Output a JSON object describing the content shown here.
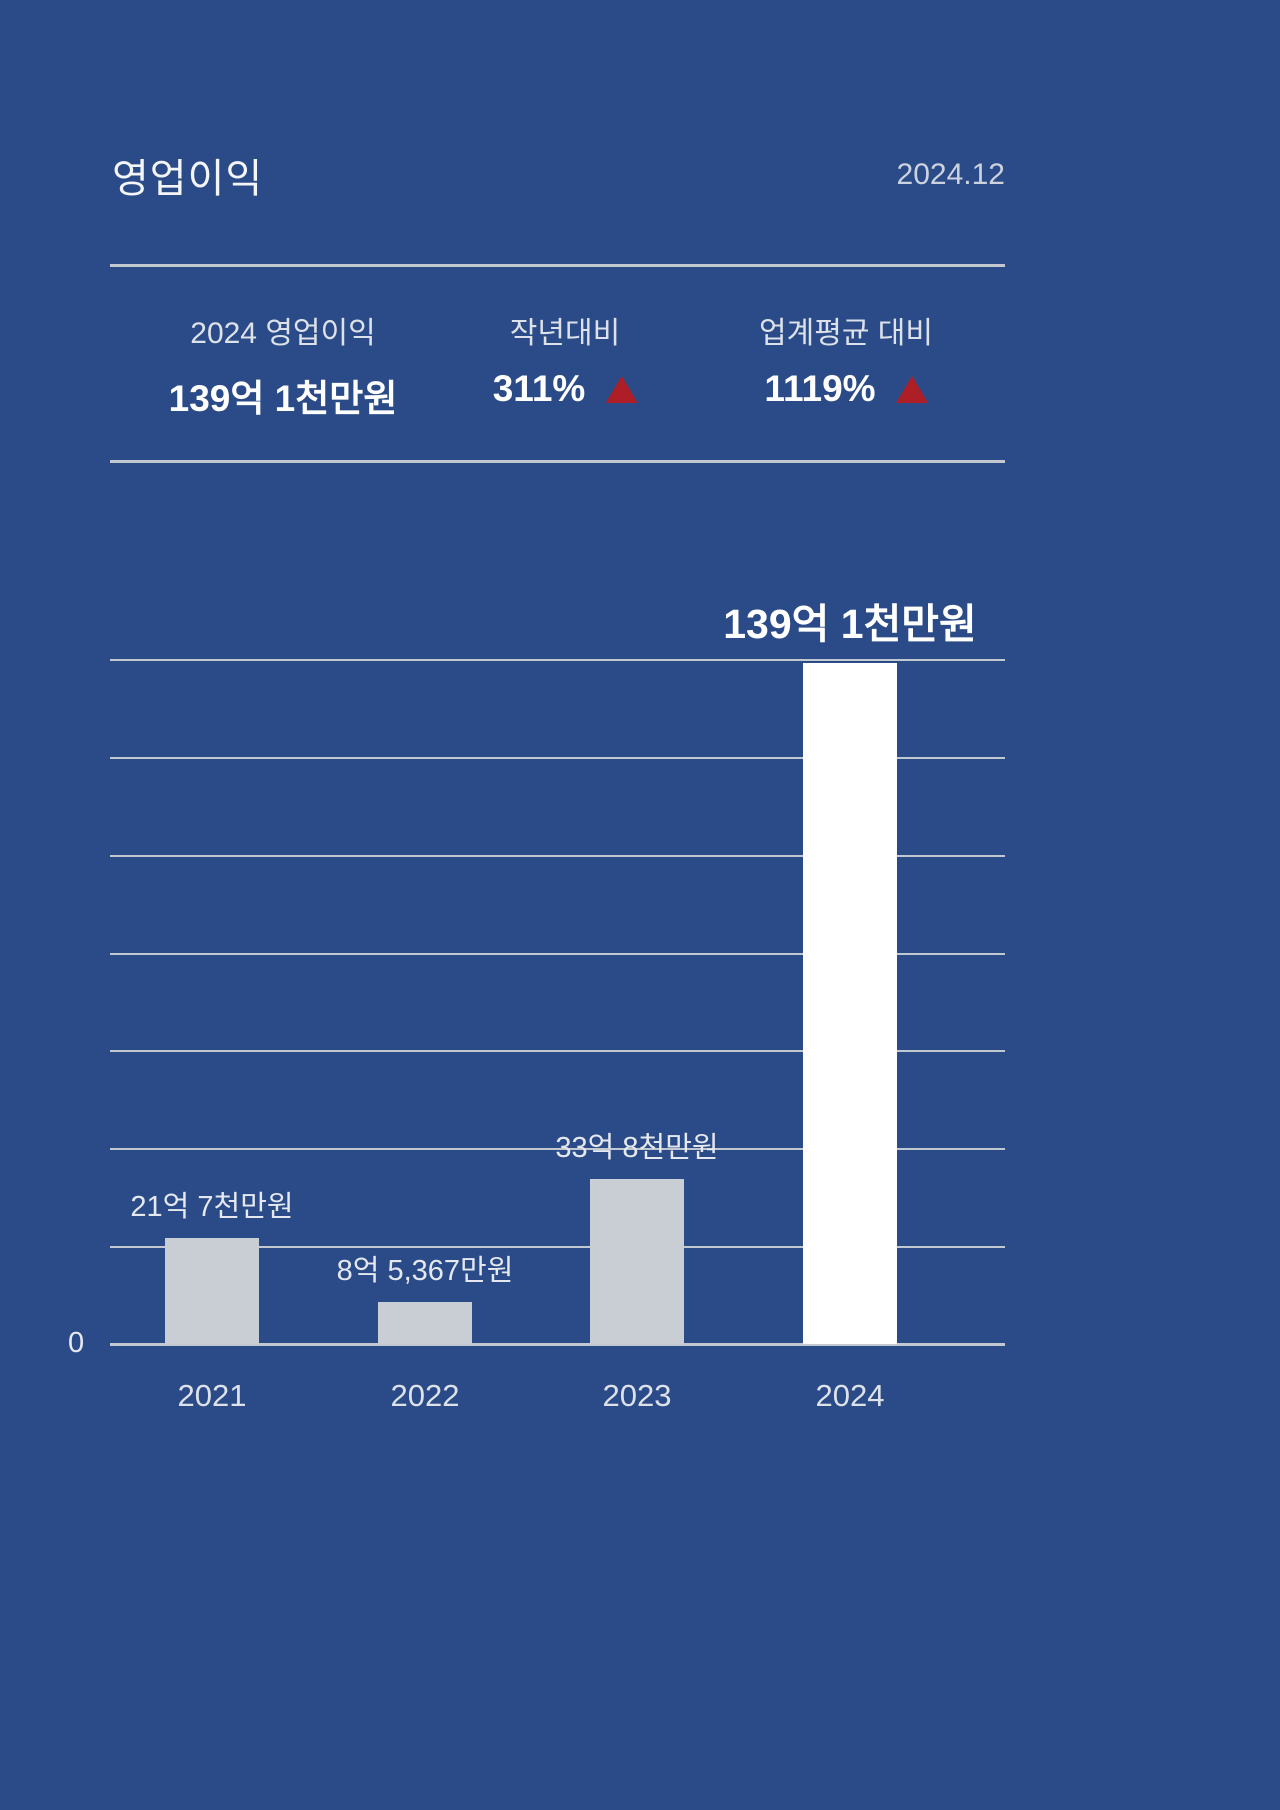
{
  "header": {
    "title": "영업이익",
    "date": "2024.12"
  },
  "summary": {
    "items": [
      {
        "label": "2024 영업이익",
        "value": "139억 1천만원",
        "delta_up": false
      },
      {
        "label": "작년대비",
        "value": "311%",
        "delta_up": true
      },
      {
        "label": "업계평균 대비",
        "value": "1119%",
        "delta_up": true
      }
    ]
  },
  "chart_data": {
    "type": "bar",
    "categories": [
      "2021",
      "2022",
      "2023",
      "2024"
    ],
    "values": [
      21.7,
      8.5367,
      33.8,
      139.1
    ],
    "unit": "억원",
    "value_labels": [
      "21억 7천만원",
      "8억 5,367만원",
      "33억 8천만원",
      "139억 1천만원"
    ],
    "highlight_index": 3,
    "ylim": [
      0,
      140
    ],
    "grid_step": 20,
    "grid": true,
    "zero_label": "0",
    "legend": "none",
    "title": "",
    "xlabel": "",
    "ylabel": ""
  },
  "colors": {
    "background": "#2a4b87",
    "grid": "#c2c8d0",
    "accent_red": "#ae1e27",
    "bar_default": "#c9cdd4",
    "bar_highlight": "#ffffff"
  }
}
